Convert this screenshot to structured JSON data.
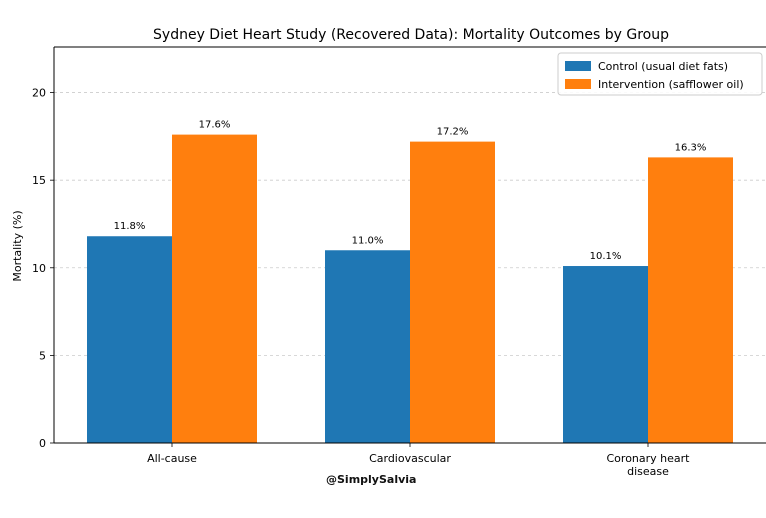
{
  "chart_data": {
    "type": "bar",
    "title": "Sydney Diet Heart Study (Recovered Data): Mortality Outcomes by Group",
    "xlabel": "",
    "ylabel": "Mortality (%)",
    "categories": [
      [
        "All-cause"
      ],
      [
        "Cardiovascular"
      ],
      [
        "Coronary heart",
        "disease"
      ]
    ],
    "series": [
      {
        "name": "Control (usual diet fats)",
        "color": "#1f77b4",
        "values": [
          11.8,
          11.0,
          10.1
        ],
        "labels": [
          "11.8%",
          "11.0%",
          "10.1%"
        ]
      },
      {
        "name": "Intervention (safflower oil)",
        "color": "#ff7f0e",
        "values": [
          17.6,
          17.2,
          16.3
        ],
        "labels": [
          "17.6%",
          "17.2%",
          "16.3%"
        ]
      }
    ],
    "ylim": [
      0,
      22.6
    ],
    "yticks": [
      0,
      5,
      10,
      15,
      20
    ],
    "grid": "y-dashed",
    "legend": "top-right"
  },
  "watermark": "@SimplySalvia"
}
